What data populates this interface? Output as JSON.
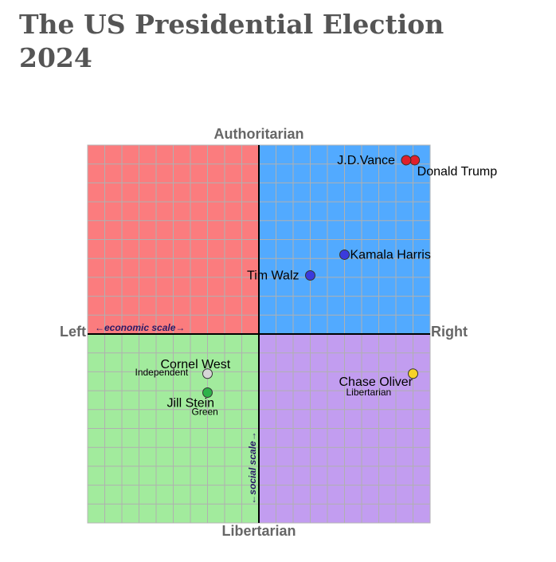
{
  "title": "The US Presidential Election 2024",
  "chart_data": {
    "type": "scatter",
    "title": "The US Presidential Election 2024",
    "xlim": [
      -10,
      10
    ],
    "ylim": [
      -10,
      10
    ],
    "grid": true,
    "axes": {
      "top": "Authoritarian",
      "bottom": "Libertarian",
      "left": "Left",
      "right": "Right",
      "economic_scale": "←economic scale→",
      "social_scale": "←social scale→"
    },
    "quadrants": [
      {
        "name": "authoritarian-left",
        "color": "#fb7c7e"
      },
      {
        "name": "authoritarian-right",
        "color": "#52aaff"
      },
      {
        "name": "libertarian-left",
        "color": "#a2eb9d"
      },
      {
        "name": "libertarian-right",
        "color": "#c29df0"
      }
    ],
    "grid_color": "#b0b0b0",
    "points": [
      {
        "name": "Donald Trump",
        "party": "",
        "x": 9.1,
        "y": 9.2,
        "color": "#e0202a",
        "label_pos": "below-right"
      },
      {
        "name": "J.D.Vance",
        "party": "",
        "x": 8.6,
        "y": 9.2,
        "color": "#e0202a",
        "label_pos": "left"
      },
      {
        "name": "Kamala Harris",
        "party": "",
        "x": 5.0,
        "y": 4.2,
        "color": "#3a3add",
        "label_pos": "right"
      },
      {
        "name": "Tim Walz",
        "party": "",
        "x": 3.0,
        "y": 3.1,
        "color": "#3a3add",
        "label_pos": "left"
      },
      {
        "name": "Cornel West",
        "party": "Independent",
        "x": -3.0,
        "y": -2.1,
        "color": "#d6d6d6",
        "label_pos": "above-left"
      },
      {
        "name": "Jill Stein",
        "party": "Green",
        "x": -3.0,
        "y": -3.1,
        "color": "#2db24a",
        "label_pos": "below-left"
      },
      {
        "name": "Chase Oliver",
        "party": "Libertarian",
        "x": 9.0,
        "y": -2.1,
        "color": "#f6d22a",
        "label_pos": "below-left"
      }
    ]
  }
}
